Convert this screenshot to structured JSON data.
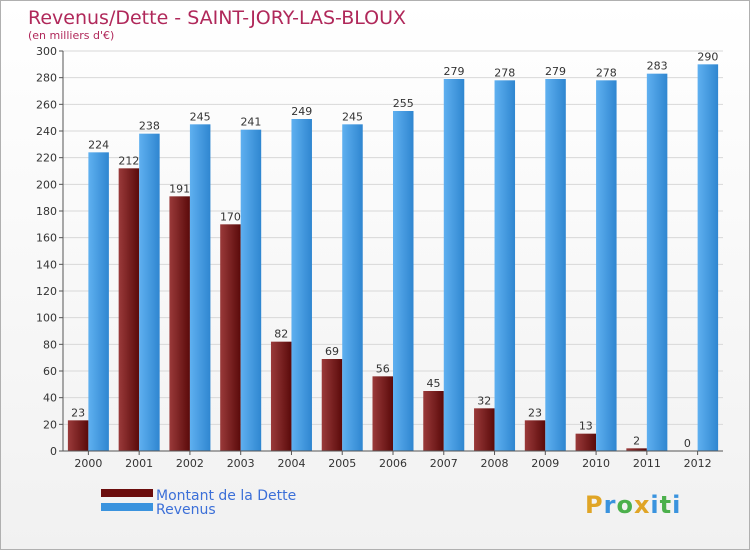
{
  "header": {
    "title": "Revenus/Dette - SAINT-JORY-LAS-BLOUX",
    "subtitle": "(en milliers d'€)"
  },
  "legend": {
    "items": [
      {
        "label": "Montant de la Dette",
        "color": "#6b0d0d"
      },
      {
        "label": "Revenus",
        "color": "#3a93de"
      }
    ]
  },
  "logo": {
    "letters": [
      "P",
      "r",
      "o",
      "x",
      "i",
      "t",
      "i"
    ],
    "colors": [
      "#e0a526",
      "#3a93de",
      "#4cb04c",
      "#e0a526",
      "#3a93de",
      "#4cb04c",
      "#3a93de"
    ]
  },
  "chart_data": {
    "type": "bar",
    "title": "Revenus/Dette - SAINT-JORY-LAS-BLOUX",
    "ylabel": "(en milliers d'€)",
    "categories": [
      "2000",
      "2001",
      "2002",
      "2003",
      "2004",
      "2005",
      "2006",
      "2007",
      "2008",
      "2009",
      "2010",
      "2011",
      "2012"
    ],
    "series": [
      {
        "name": "Montant de la Dette",
        "values": [
          23,
          212,
          191,
          170,
          82,
          69,
          56,
          45,
          32,
          23,
          13,
          2,
          0
        ],
        "color": "#6b0d0d"
      },
      {
        "name": "Revenus",
        "values": [
          224,
          238,
          245,
          241,
          249,
          245,
          255,
          279,
          278,
          279,
          278,
          283,
          290
        ],
        "color": "#3a93de"
      }
    ],
    "ylim": [
      0,
      300
    ],
    "yticks": [
      0,
      20,
      40,
      60,
      80,
      100,
      120,
      140,
      160,
      180,
      200,
      220,
      240,
      260,
      280,
      300
    ],
    "grid": true,
    "legend_position": "bottom-left"
  }
}
